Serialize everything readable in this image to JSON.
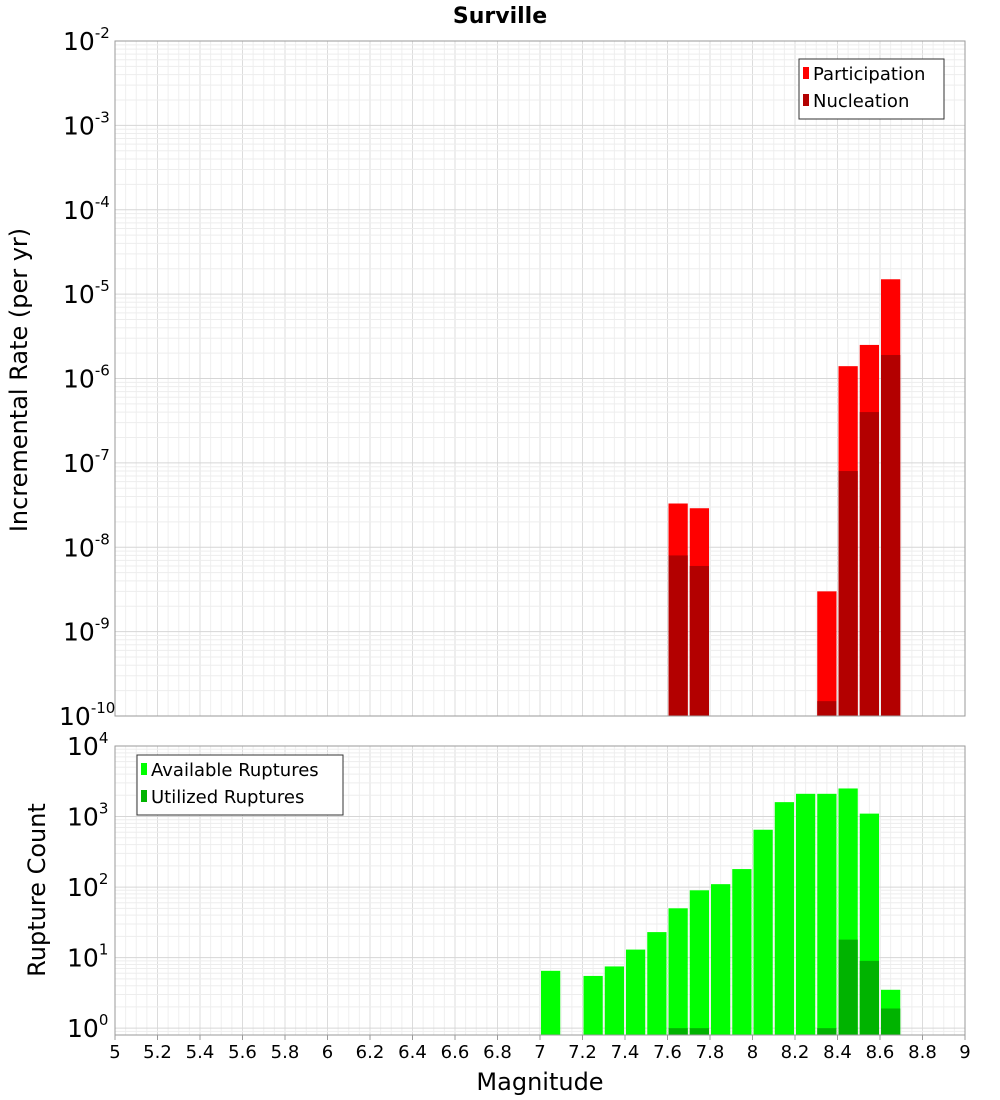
{
  "chart_data": [
    {
      "type": "bar",
      "title": "Surville",
      "xlabel": "",
      "ylabel": "Incremental Rate (per yr)",
      "xlim": [
        5,
        9
      ],
      "ylim": [
        1e-10,
        0.01
      ],
      "yscale": "log",
      "grid": true,
      "legend_position": "top-right",
      "bar_width": 0.1,
      "series": [
        {
          "name": "Participation",
          "color": "#ff0000",
          "x": [
            7.65,
            7.75,
            8.35,
            8.45,
            8.55,
            8.65
          ],
          "values": [
            3.3e-08,
            2.9e-08,
            3e-09,
            1.4e-06,
            2.5e-06,
            1.5e-05
          ]
        },
        {
          "name": "Nucleation",
          "color": "#b30000",
          "x": [
            7.65,
            7.75,
            8.35,
            8.45,
            8.55,
            8.65
          ],
          "values": [
            8e-09,
            6e-09,
            1.5e-10,
            8e-08,
            4e-07,
            1.9e-06
          ]
        }
      ]
    },
    {
      "type": "bar",
      "title": "",
      "xlabel": "Magnitude",
      "ylabel": "Rupture Count",
      "xlim": [
        5,
        9
      ],
      "ylim": [
        0.8,
        10000
      ],
      "yscale": "log",
      "grid": true,
      "legend_position": "top-left",
      "bar_width": 0.1,
      "series": [
        {
          "name": "Available Ruptures",
          "color": "#00ff00",
          "x": [
            7.05,
            7.25,
            7.35,
            7.45,
            7.55,
            7.65,
            7.75,
            7.85,
            7.95,
            8.05,
            8.15,
            8.25,
            8.35,
            8.45,
            8.55,
            8.65
          ],
          "values": [
            6.5,
            5.5,
            7.5,
            13,
            23,
            50,
            90,
            110,
            180,
            650,
            1600,
            2100,
            2100,
            2500,
            1100,
            3.5
          ]
        },
        {
          "name": "Utilized Ruptures",
          "color": "#00b300",
          "x": [
            7.65,
            7.75,
            8.35,
            8.45,
            8.55,
            8.65
          ],
          "values": [
            1,
            1,
            1,
            18,
            9,
            1.9
          ]
        }
      ],
      "xticks": [
        "5",
        "5.2",
        "5.4",
        "5.6",
        "5.8",
        "6",
        "6.2",
        "6.4",
        "6.6",
        "6.8",
        "7",
        "7.2",
        "7.4",
        "7.6",
        "7.8",
        "8",
        "8.2",
        "8.4",
        "8.6",
        "8.8",
        "9"
      ]
    }
  ],
  "tick_base": "10",
  "top_yticks_exp": [
    "-2",
    "-3",
    "-4",
    "-5",
    "-6",
    "-7",
    "-8",
    "-9",
    "-10"
  ],
  "bottom_yticks_exp": [
    "4",
    "3",
    "2",
    "1",
    "0"
  ]
}
